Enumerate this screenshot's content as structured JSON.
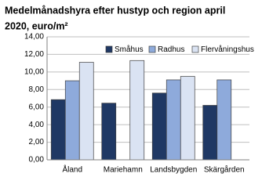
{
  "chart_data": {
    "type": "bar",
    "title": [
      "Medelmånadshyra efter hustyp och region april",
      "2020, euro/m²"
    ],
    "categories": [
      "Åland",
      "Mariehamn",
      "Landsbygden",
      "Skärgården"
    ],
    "series": [
      {
        "name": "Småhus",
        "color": "#1f3864",
        "values": [
          6.85,
          6.45,
          7.6,
          6.2
        ]
      },
      {
        "name": "Radhus",
        "color": "#8eaadb",
        "values": [
          9.0,
          null,
          9.1,
          9.1
        ]
      },
      {
        "name": "Flervåningshus",
        "color": "#dae3f3",
        "values": [
          11.1,
          11.3,
          9.5,
          null
        ]
      }
    ],
    "ylim": [
      0,
      14
    ],
    "yticks": [
      {
        "value": 0,
        "label": "0,00"
      },
      {
        "value": 2,
        "label": "2,00"
      },
      {
        "value": 4,
        "label": "4,00"
      },
      {
        "value": 6,
        "label": "6,00"
      },
      {
        "value": 8,
        "label": "8,00"
      },
      {
        "value": 10,
        "label": "10,00"
      },
      {
        "value": 12,
        "label": "12,00"
      },
      {
        "value": 14,
        "label": "14,00"
      }
    ],
    "grid": true
  }
}
